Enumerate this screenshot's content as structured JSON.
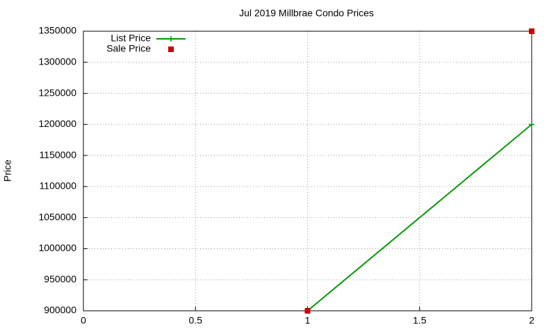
{
  "chart_data": {
    "type": "line",
    "title": "Jul 2019 Millbrae Condo Prices",
    "y_label": "Price",
    "x": [
      1,
      2
    ],
    "series": [
      {
        "name": "List Price",
        "color": "#009900",
        "mode": "lines+markers",
        "marker": "plus",
        "values": [
          900000,
          1200000
        ]
      },
      {
        "name": "Sale Price",
        "color": "#cc0000",
        "mode": "markers",
        "marker": "square",
        "values": [
          900000,
          1350000
        ]
      }
    ],
    "xlim": [
      0,
      2
    ],
    "xticks": [
      0,
      0.5,
      1,
      1.5,
      2
    ],
    "ylim": [
      900000,
      1350000
    ],
    "yticks": [
      900000,
      950000,
      1000000,
      1050000,
      1100000,
      1150000,
      1200000,
      1250000,
      1300000,
      1350000
    ],
    "grid": true,
    "legend": "top-left"
  }
}
